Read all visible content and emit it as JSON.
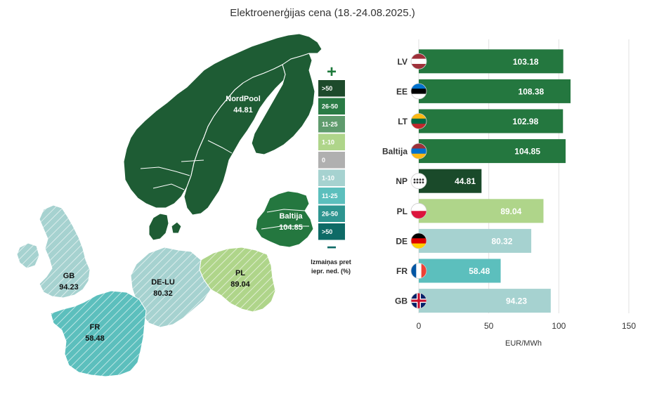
{
  "title": "Elektroenerģijas cena (18.-24.08.2025.)",
  "map": {
    "regions": {
      "nordpool": {
        "name": "NordPool",
        "value": "44.81",
        "color": "#1e5c34"
      },
      "baltija": {
        "name": "Baltija",
        "value": "104.85",
        "color": "#24773f"
      },
      "pl": {
        "name": "PL",
        "value": "89.04",
        "color": "#afd58a"
      },
      "deLu": {
        "name": "DE-LU",
        "value": "80.32",
        "color": "#a6d2d0"
      },
      "gb": {
        "name": "GB",
        "value": "94.23",
        "color": "#a6d2d0"
      },
      "fr": {
        "name": "FR",
        "value": "58.48",
        "color": "#5cbfbd"
      }
    },
    "legend": {
      "plus": "+",
      "minus": "−",
      "items": [
        {
          "label": ">50",
          "color": "#1d4a2b"
        },
        {
          "label": "26-50",
          "color": "#2a7b45"
        },
        {
          "label": "11-25",
          "color": "#5f9b6d"
        },
        {
          "label": "1-10",
          "color": "#afd58a"
        },
        {
          "label": "0",
          "color": "#b0b0b0"
        },
        {
          "label": "1-10",
          "color": "#a6d2d0"
        },
        {
          "label": "11-25",
          "color": "#5cbfbd"
        },
        {
          "label": "26-50",
          "color": "#2e9590"
        },
        {
          "label": ">50",
          "color": "#0e6a66"
        }
      ],
      "caption_line1": "Izmaiņas pret",
      "caption_line2": "iepr. ned. (%)"
    }
  },
  "chart_data": {
    "type": "bar",
    "orientation": "horizontal",
    "categories": [
      "LV",
      "EE",
      "LT",
      "Baltija",
      "NP",
      "PL",
      "DE",
      "FR",
      "GB"
    ],
    "values": [
      103.18,
      108.38,
      102.98,
      104.85,
      44.81,
      89.04,
      80.32,
      58.48,
      94.23
    ],
    "labels": [
      "103.18",
      "108.38",
      "102.98",
      "104.85",
      "44.81",
      "89.04",
      "80.32",
      "58.48",
      "94.23"
    ],
    "bar_colors": [
      "#24773f",
      "#24773f",
      "#24773f",
      "#24773f",
      "#1a4a2a",
      "#afd58a",
      "#a6d2d0",
      "#5cbfbd",
      "#a6d2d0"
    ],
    "xlabel": "EUR/MWh",
    "xlim": [
      0,
      150
    ],
    "xticks": [
      0,
      50,
      100,
      150
    ],
    "xtick_labels": [
      "0",
      "50",
      "100",
      "150"
    ],
    "grid": true
  }
}
